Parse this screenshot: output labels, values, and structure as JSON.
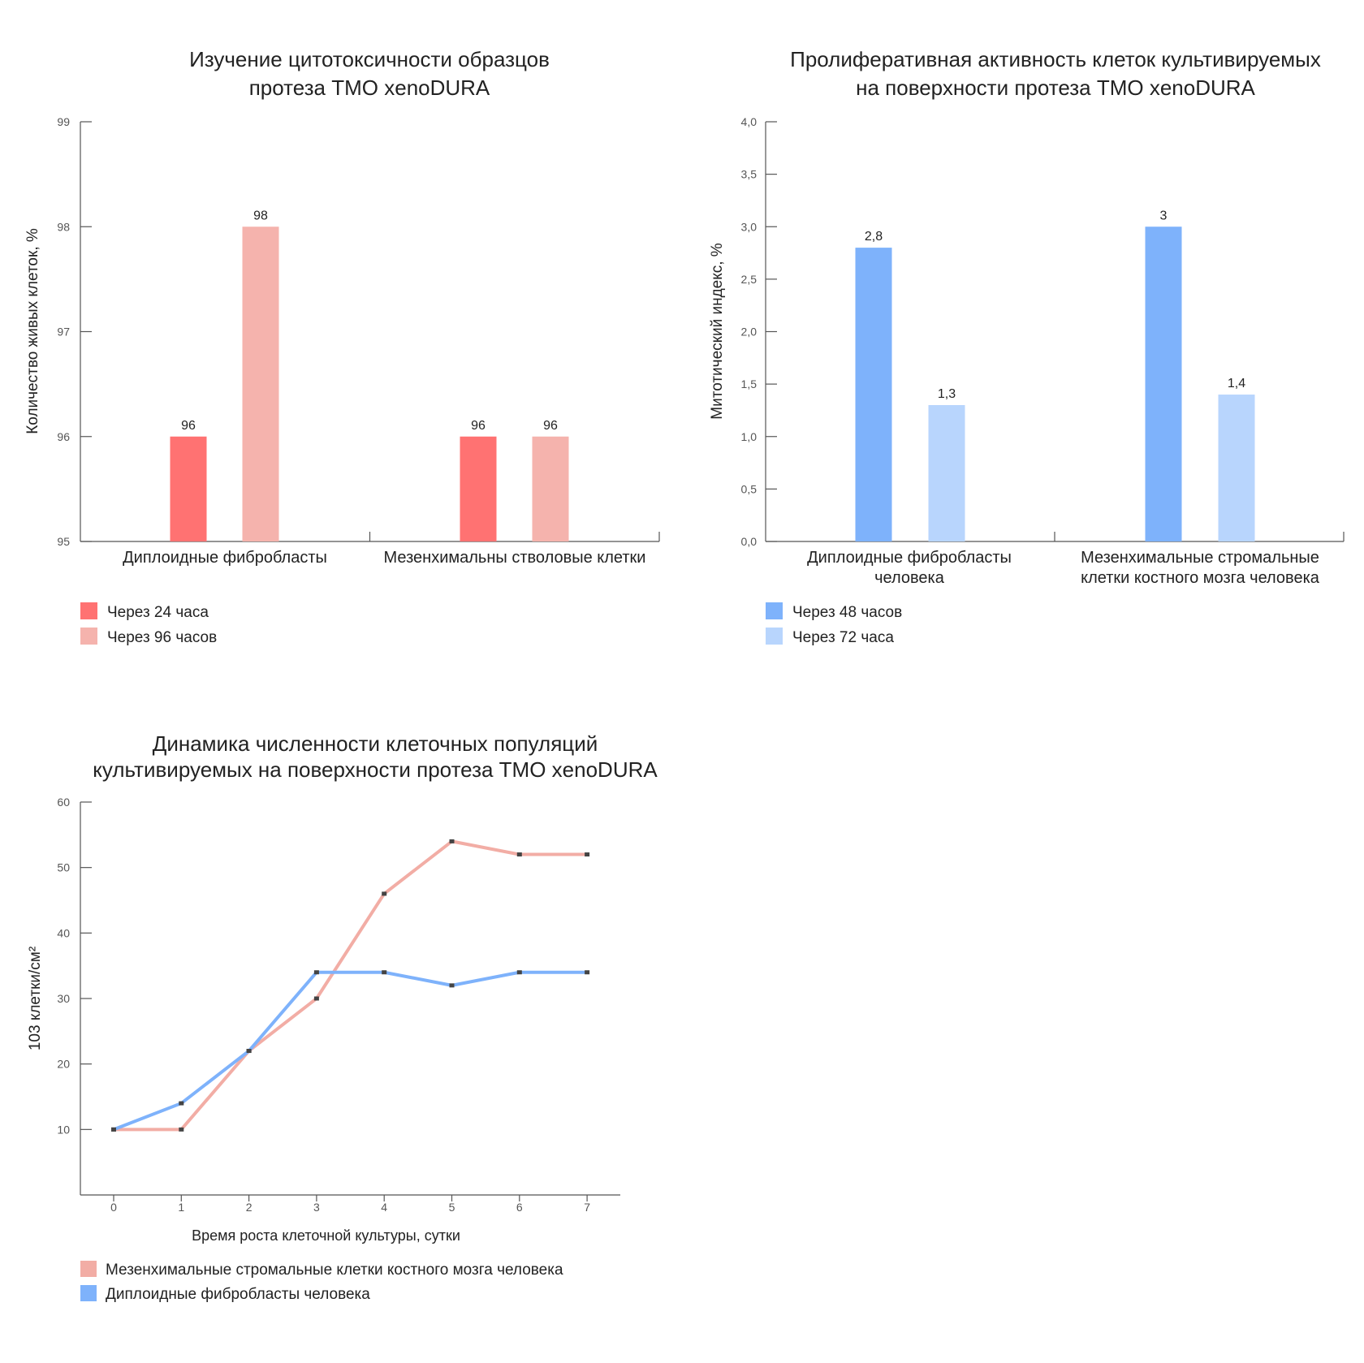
{
  "chart_data": [
    {
      "type": "bar",
      "title": [
        "Изучение цитотоксичности образцов",
        "протеза ТМО xenoDURA"
      ],
      "ylabel": "Количество живых клеток, %",
      "xlabel": "",
      "ylim": [
        95,
        99
      ],
      "yticks": [
        "95",
        "96",
        "97",
        "98",
        "99"
      ],
      "categories": [
        [
          "Диплоидные фибробласты"
        ],
        [
          "Мезенхимальны стволовые клетки"
        ]
      ],
      "series": [
        {
          "name": "Через 24 часа",
          "color": "#ff7272",
          "values": [
            96,
            96
          ],
          "labels": [
            "96",
            "96"
          ]
        },
        {
          "name": "Через 96 часов",
          "color": "#f5b3ad",
          "values": [
            98,
            96
          ],
          "labels": [
            "98",
            "96"
          ]
        }
      ],
      "legend": "bottom-left"
    },
    {
      "type": "bar",
      "title": [
        "Пролиферативная активность клеток культивируемых",
        "на поверхности протеза ТМО xenoDURA"
      ],
      "ylabel": "Митотический индекс, %",
      "xlabel": "",
      "ylim": [
        0,
        4
      ],
      "yticks": [
        "0,0",
        "0,5",
        "1,0",
        "1,5",
        "2,0",
        "2,5",
        "3,0",
        "3,5",
        "4,0"
      ],
      "categories": [
        [
          "Диплоидные фибробласты",
          "человека"
        ],
        [
          "Мезенхимальные стромальные",
          "клетки костного мозга человека"
        ]
      ],
      "series": [
        {
          "name": "Через 48 часов",
          "color": "#7eb2fb",
          "values": [
            2.8,
            3.0
          ],
          "labels": [
            "2,8",
            "3"
          ]
        },
        {
          "name": "Через 72 часа",
          "color": "#b8d5fd",
          "values": [
            1.3,
            1.4
          ],
          "labels": [
            "1,3",
            "1,4"
          ]
        }
      ],
      "legend": "bottom-left"
    },
    {
      "type": "line",
      "title": [
        "Динамика численности клеточных популяций",
        "культивируемых на поверхности протеза ТМО xenoDURA"
      ],
      "ylabel": "103 клетки/см²",
      "xlabel": "Время роста клеточной культуры, сутки",
      "ylim": [
        0,
        60
      ],
      "yticks": [
        "10",
        "20",
        "30",
        "40",
        "50",
        "60"
      ],
      "x": [
        "0",
        "1",
        "2",
        "3",
        "4",
        "5",
        "6",
        "7"
      ],
      "series": [
        {
          "name": "Мезенхимальные стромальные клетки костного мозга человека",
          "color": "#f2ada5",
          "values": [
            10,
            10,
            22,
            30,
            46,
            54,
            52,
            52
          ]
        },
        {
          "name": "Диплоидные фибробласты человека",
          "color": "#7eb2fb",
          "values": [
            10,
            14,
            22,
            34,
            34,
            32,
            34,
            34
          ]
        }
      ],
      "legend": "bottom-left"
    }
  ]
}
